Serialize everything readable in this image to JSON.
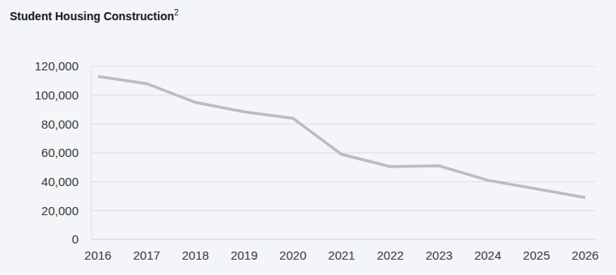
{
  "chart_data": {
    "type": "line",
    "title": "Student Housing Construction",
    "title_footnote": "2",
    "categories": [
      "2016",
      "2017",
      "2018",
      "2019",
      "2020",
      "2021",
      "2022",
      "2023",
      "2024",
      "2025",
      "2026"
    ],
    "values": [
      113000,
      108000,
      95000,
      88500,
      84000,
      59000,
      50500,
      51000,
      41000,
      35000,
      29000
    ],
    "color": "#bcbcbc",
    "ylim": [
      0,
      120000
    ],
    "yticks": [
      0,
      {
        "value": 20000,
        "label": "20,000"
      },
      {
        "value": 40000,
        "label": "40,000"
      },
      {
        "value": 60000,
        "label": "60,000"
      },
      {
        "value": 80000,
        "label": "80,000"
      },
      {
        "value": 100000,
        "label": "100,000"
      },
      {
        "value": 120000,
        "label": "120,000"
      }
    ],
    "grid": true
  }
}
